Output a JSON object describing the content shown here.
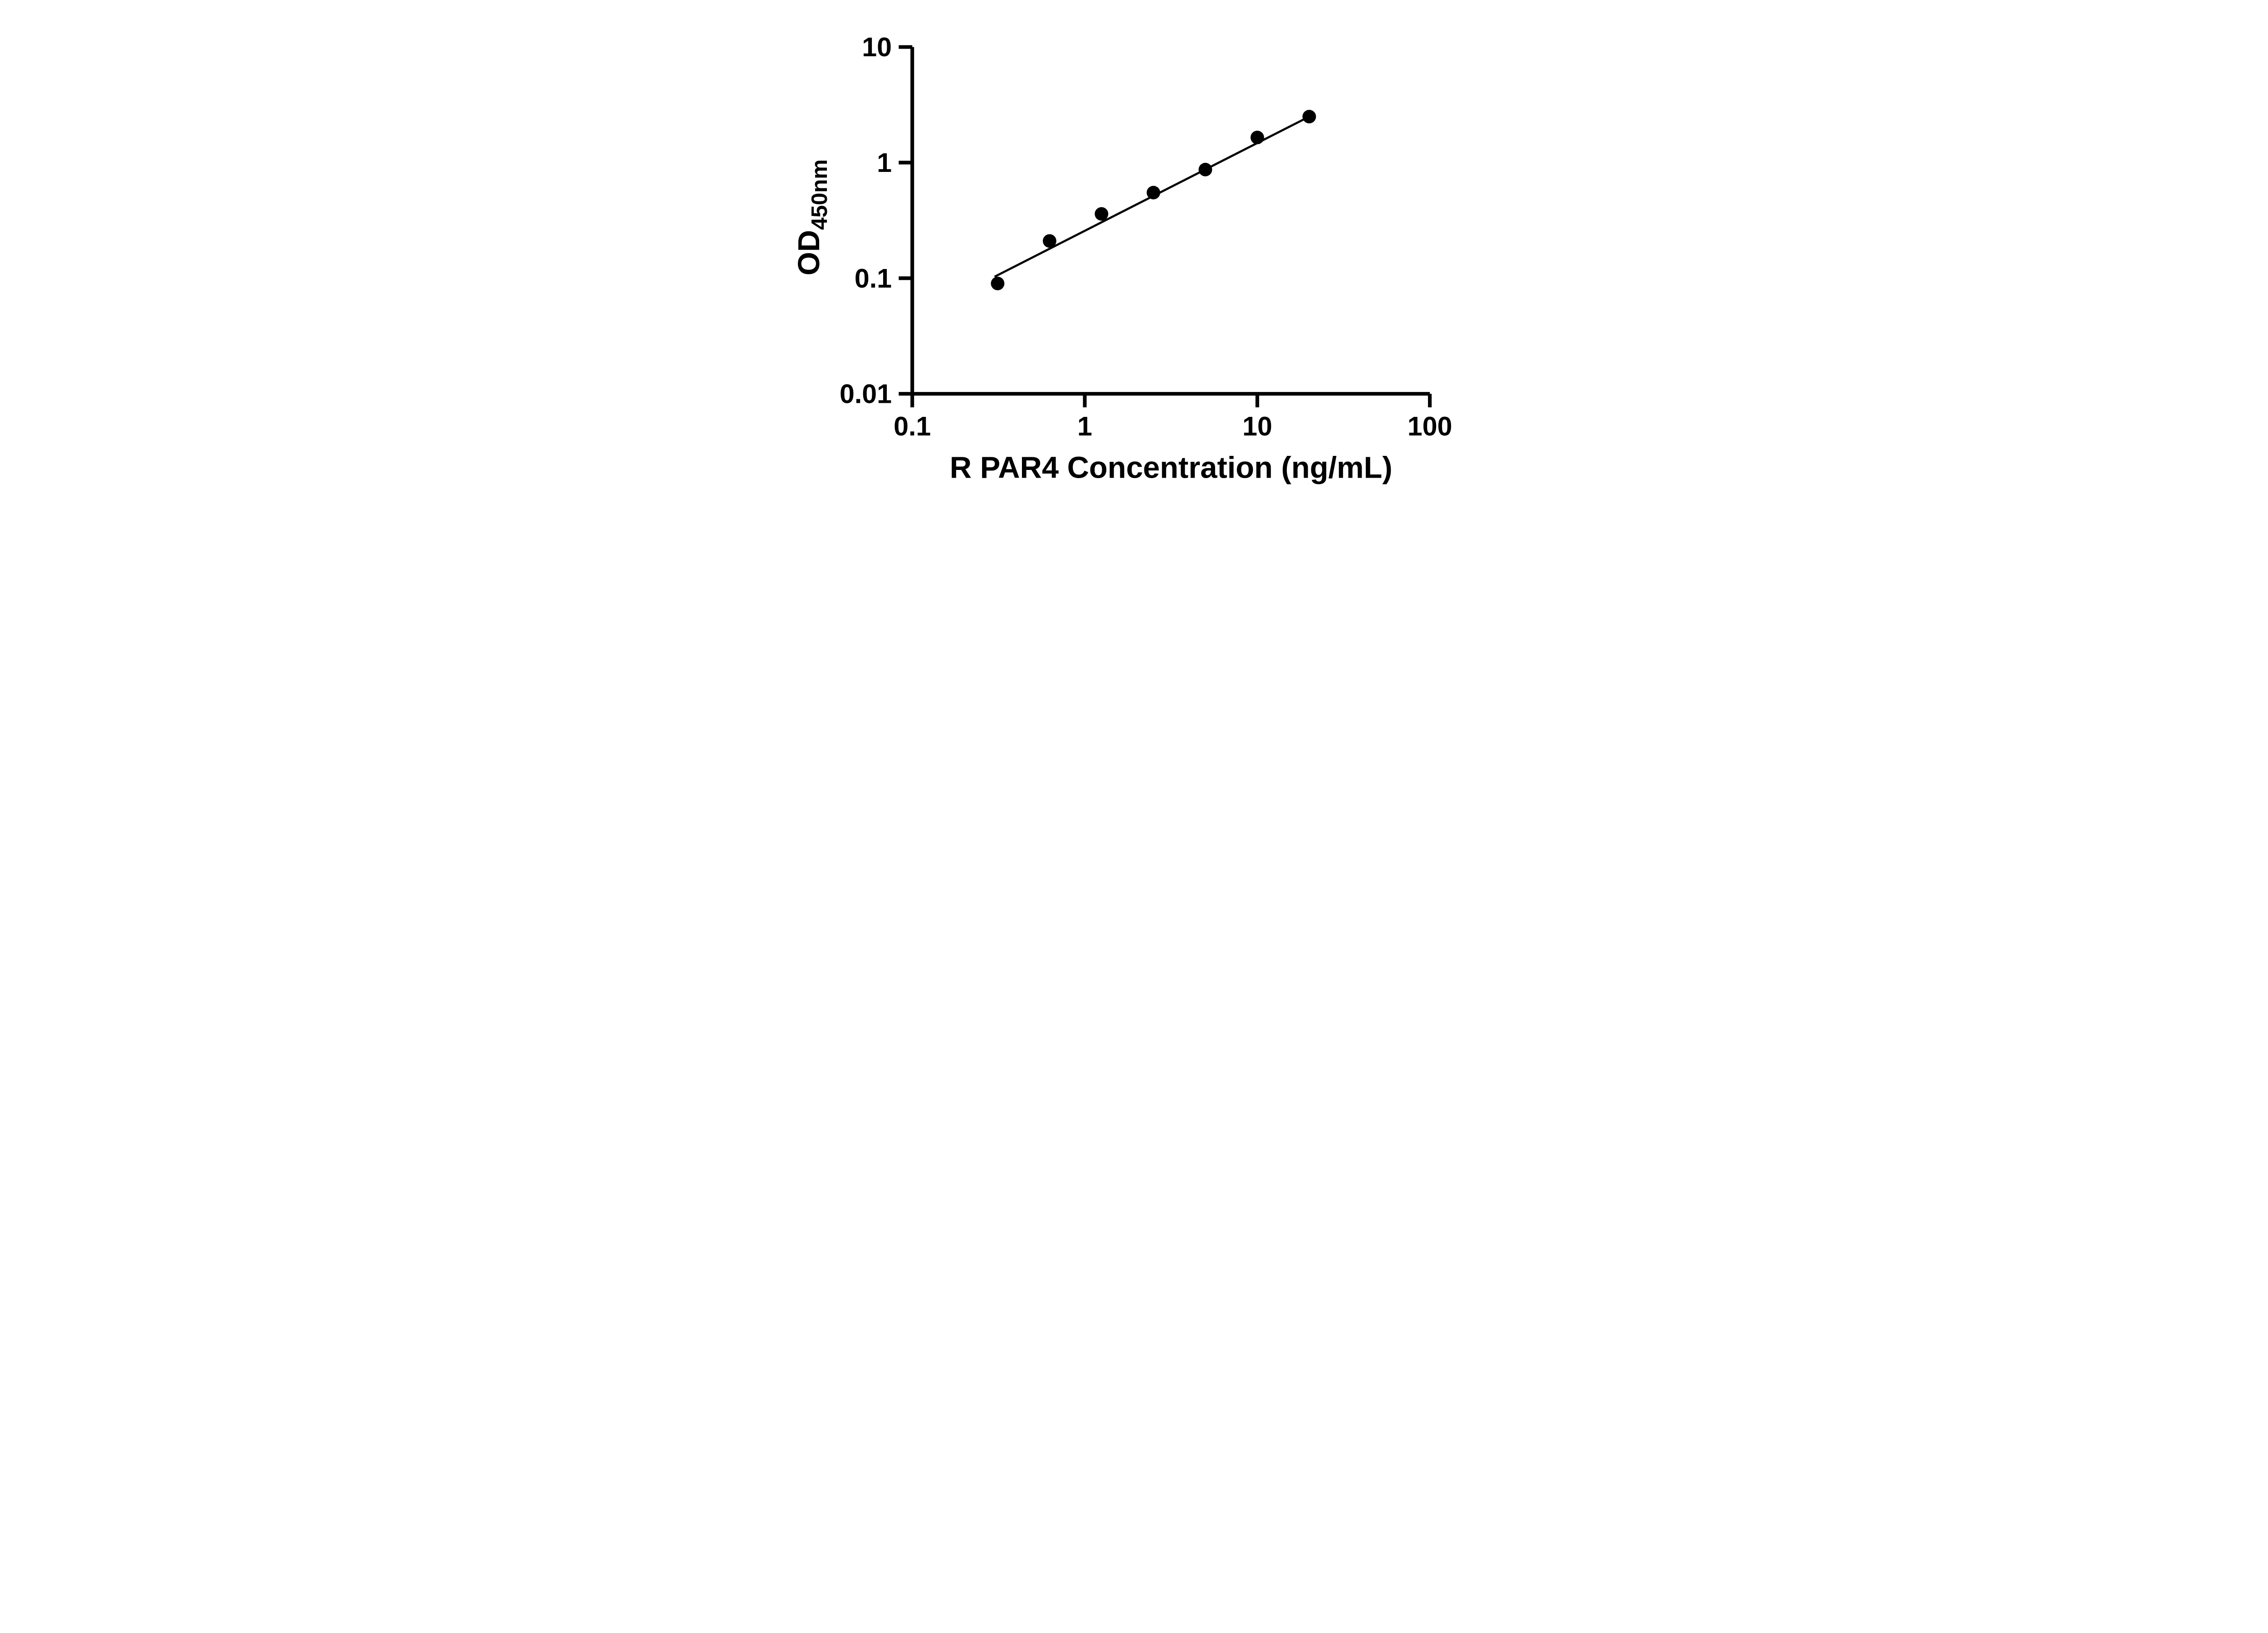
{
  "chart_data": {
    "type": "scatter",
    "xlabel": "R PAR4 Concentration (ng/mL)",
    "ylabel_main": "OD",
    "ylabel_sub": "450nm",
    "x_scale": "log",
    "y_scale": "log",
    "xlim": [
      0.1,
      100
    ],
    "ylim": [
      0.01,
      10
    ],
    "x_ticks": [
      0.1,
      1,
      10,
      100
    ],
    "x_tick_labels": [
      "0.1",
      "1",
      "10",
      "100"
    ],
    "y_ticks": [
      0.01,
      0.1,
      1,
      10
    ],
    "y_tick_labels": [
      "0.01",
      "0.1",
      "1",
      "10"
    ],
    "points": {
      "x": [
        0.3125,
        0.625,
        1.25,
        2.5,
        5,
        10,
        20
      ],
      "y": [
        0.09,
        0.21,
        0.36,
        0.55,
        0.87,
        1.65,
        2.5
      ]
    },
    "fit_line": {
      "x1": 0.3,
      "y1": 0.103,
      "x2": 20,
      "y2": 2.5
    },
    "grid": false,
    "legend": false,
    "marker_color": "#000000",
    "line_color": "#000000",
    "axis_color": "#000000",
    "background_color": "#ffffff"
  }
}
